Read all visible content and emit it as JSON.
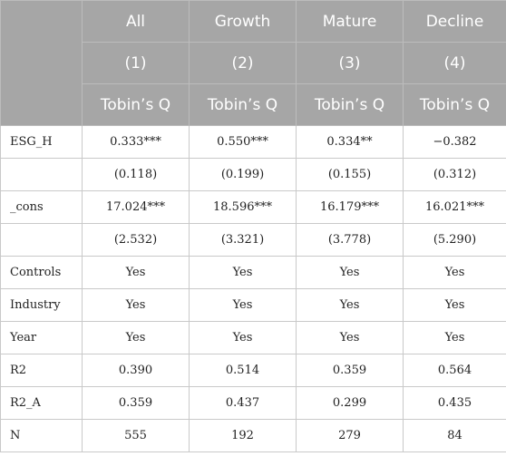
{
  "header": {
    "groups": [
      "All",
      "Growth",
      "Mature",
      "Decline"
    ],
    "numbers": [
      "(1)",
      "(2)",
      "(3)",
      "(4)"
    ],
    "dependent": [
      "Tobin’s Q",
      "Tobin’s Q",
      "Tobin’s Q",
      "Tobin’s Q"
    ]
  },
  "rows": [
    {
      "label": "ESG_H",
      "values": [
        "0.333***",
        "0.550***",
        "0.334**",
        "−0.382"
      ]
    },
    {
      "label": "",
      "values": [
        "(0.118)",
        "(0.199)",
        "(0.155)",
        "(0.312)"
      ]
    },
    {
      "label": "_cons",
      "values": [
        "17.024***",
        "18.596***",
        "16.179***",
        "16.021***"
      ]
    },
    {
      "label": "",
      "values": [
        "(2.532)",
        "(3.321)",
        "(3.778)",
        "(5.290)"
      ]
    },
    {
      "label": "Controls",
      "values": [
        "Yes",
        "Yes",
        "Yes",
        "Yes"
      ]
    },
    {
      "label": "Industry",
      "values": [
        "Yes",
        "Yes",
        "Yes",
        "Yes"
      ]
    },
    {
      "label": "Year",
      "values": [
        "Yes",
        "Yes",
        "Yes",
        "Yes"
      ]
    },
    {
      "label": "R2",
      "values": [
        "0.390",
        "0.514",
        "0.359",
        "0.564"
      ]
    },
    {
      "label": "R2_A",
      "values": [
        "0.359",
        "0.437",
        "0.299",
        "0.435"
      ]
    },
    {
      "label": "N",
      "values": [
        "555",
        "192",
        "279",
        "84"
      ]
    }
  ]
}
